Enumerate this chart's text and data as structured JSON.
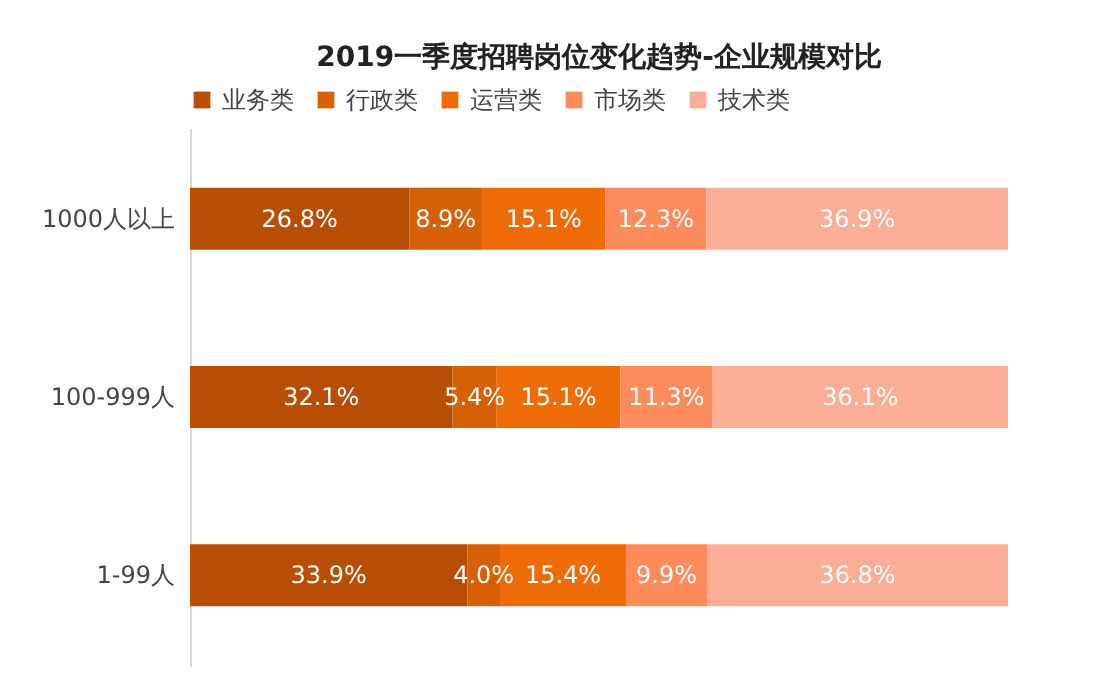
{
  "chart_data": {
    "type": "bar",
    "orientation": "horizontal",
    "stacked": true,
    "title": "2019一季度招聘岗位变化趋势-企业规模对比",
    "categories": [
      "1000人以上",
      "100-999人",
      "1-99人"
    ],
    "legend": "top",
    "series": [
      {
        "name": "业务类",
        "color": "#b84e03",
        "values": [
          26.8,
          32.1,
          33.9
        ],
        "value_labels": [
          "26.8%",
          "32.1%",
          "33.9%"
        ]
      },
      {
        "name": "行政类",
        "color": "#d66005",
        "values": [
          8.9,
          5.4,
          4.0
        ],
        "value_labels": [
          "8.9%",
          "5.4%",
          "4.0%"
        ]
      },
      {
        "name": "运营类",
        "color": "#ee6c08",
        "values": [
          15.1,
          15.1,
          15.4
        ],
        "value_labels": [
          "15.1%",
          "15.1%",
          "15.4%"
        ]
      },
      {
        "name": "市场类",
        "color": "#fd8b5c",
        "values": [
          12.3,
          11.3,
          9.9
        ],
        "value_labels": [
          "12.3%",
          "11.3%",
          "9.9%"
        ]
      },
      {
        "name": "技术类",
        "color": "#fbae95",
        "values": [
          36.9,
          36.1,
          36.8
        ],
        "value_labels": [
          "36.9%",
          "36.1%",
          "36.8%"
        ]
      }
    ]
  }
}
